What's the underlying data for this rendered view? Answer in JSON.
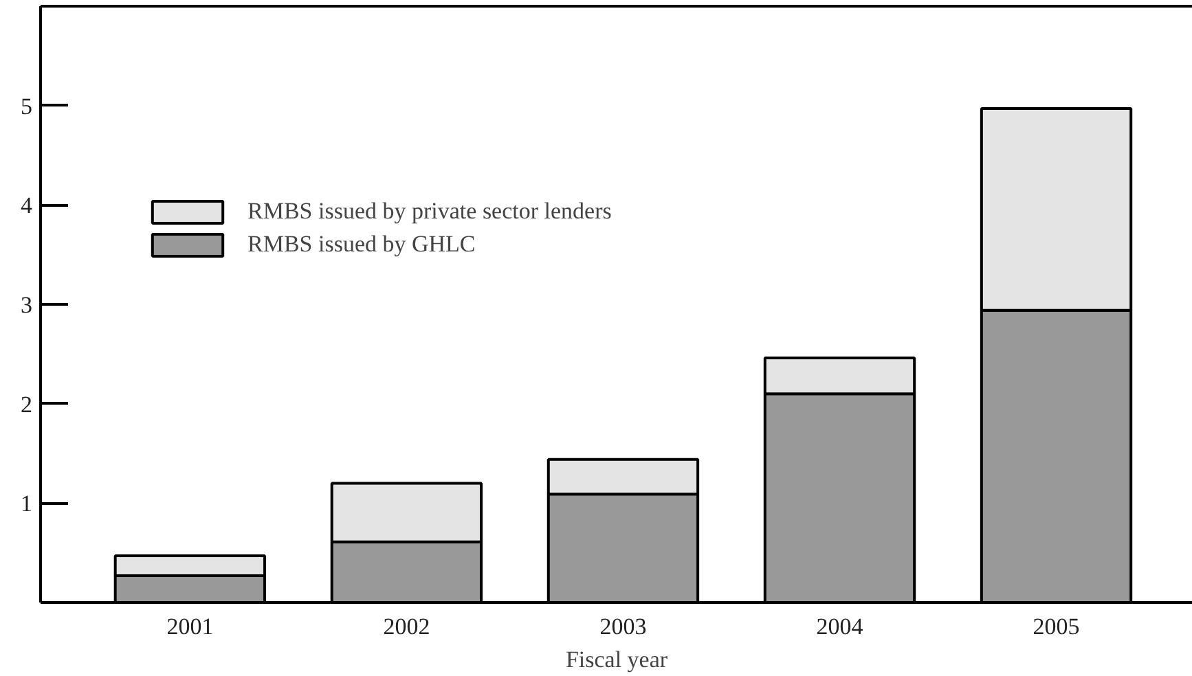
{
  "chart_data": {
    "type": "bar",
    "stacked": true,
    "xlabel": "Fiscal year",
    "categories": [
      "2001",
      "2002",
      "2003",
      "2004",
      "2005"
    ],
    "series": [
      {
        "name": "RMBS issued by GHLC",
        "color": "#999999",
        "values": [
          0.27,
          0.61,
          1.09,
          2.1,
          2.94
        ]
      },
      {
        "name": "RMBS issued by private sector lenders",
        "color": "#e4e4e4",
        "values": [
          0.2,
          0.59,
          0.35,
          0.36,
          2.03
        ]
      }
    ],
    "ylim": [
      0,
      6
    ],
    "yticks": [
      1,
      2,
      3,
      4,
      5
    ],
    "grid": false,
    "legend": "top left"
  }
}
